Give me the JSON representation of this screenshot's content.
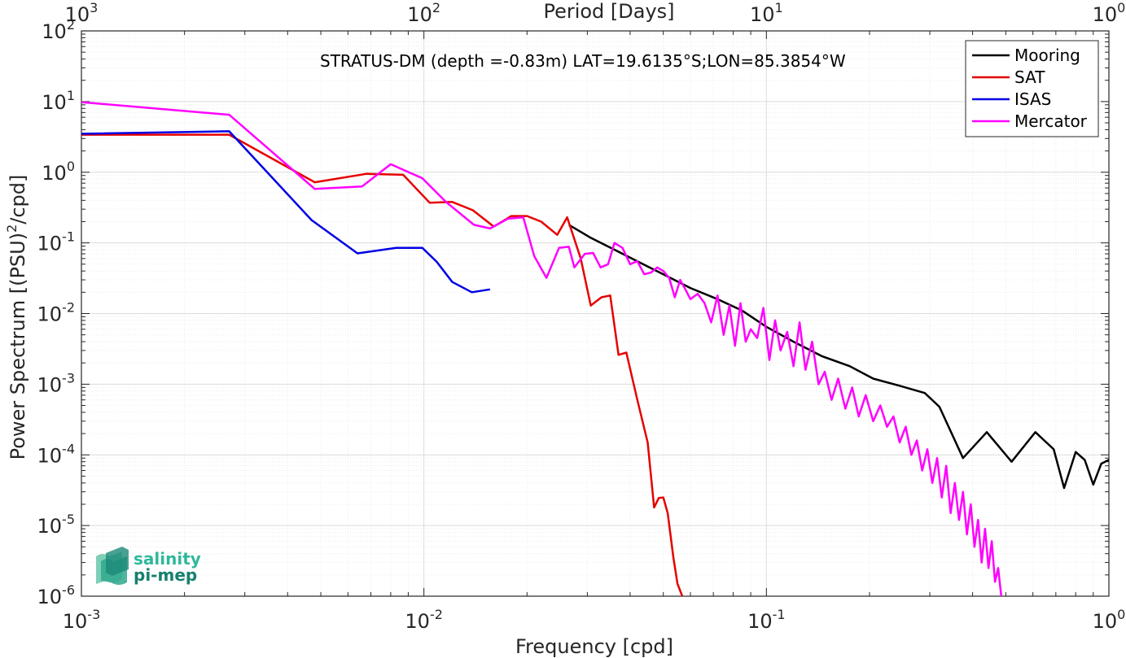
{
  "chart_data": {
    "type": "line",
    "x_scale": "log",
    "y_scale": "log",
    "xlabel": "Frequency [cpd]",
    "ylabel": "Power Spectrum [(PSU)^2/cpd]",
    "top_axis_label": "Period [Days]",
    "annotation": "STRATUS-DM (depth =-0.83m) LAT=19.6135°S;LON=85.3854°W",
    "xlim": [
      0.001,
      1
    ],
    "ylim": [
      1e-06,
      100
    ],
    "grid": true,
    "legend_position": "top-right",
    "x_ticks": [
      {
        "base": "10",
        "exp": "-3"
      },
      {
        "base": "10",
        "exp": "-2"
      },
      {
        "base": "10",
        "exp": "-1"
      },
      {
        "base": "10",
        "exp": "0"
      }
    ],
    "x_ticks_top": [
      {
        "base": "10",
        "exp": "3"
      },
      {
        "base": "10",
        "exp": "2"
      },
      {
        "base": "10",
        "exp": "1"
      },
      {
        "base": "10",
        "exp": "0"
      }
    ],
    "y_ticks": [
      {
        "base": "10",
        "exp": "-6"
      },
      {
        "base": "10",
        "exp": "-5"
      },
      {
        "base": "10",
        "exp": "-4"
      },
      {
        "base": "10",
        "exp": "-3"
      },
      {
        "base": "10",
        "exp": "-2"
      },
      {
        "base": "10",
        "exp": "-1"
      },
      {
        "base": "10",
        "exp": "0"
      },
      {
        "base": "10",
        "exp": "1"
      },
      {
        "base": "10",
        "exp": "2"
      }
    ],
    "series": [
      {
        "name": "Mooring",
        "color": "#000000",
        "x": [
          0.0265,
          0.0305,
          0.036,
          0.042,
          0.05,
          0.06,
          0.072,
          0.085,
          0.1,
          0.12,
          0.145,
          0.175,
          0.205,
          0.245,
          0.29,
          0.32,
          0.375,
          0.44,
          0.52,
          0.61,
          0.69,
          0.74,
          0.8,
          0.85,
          0.9,
          0.95,
          1.0
        ],
        "y": [
          0.18,
          0.12,
          0.08,
          0.055,
          0.036,
          0.023,
          0.016,
          0.011,
          0.0065,
          0.004,
          0.0025,
          0.0018,
          0.0012,
          0.00095,
          0.00075,
          0.00048,
          9e-05,
          0.00021,
          8e-05,
          0.00021,
          0.00012,
          3.4e-05,
          0.00011,
          8.5e-05,
          3.8e-05,
          7.5e-05,
          8.5e-05
        ]
      },
      {
        "name": "SAT",
        "color": "#e60000",
        "x": [
          0.001,
          0.0027,
          0.0048,
          0.0068,
          0.0087,
          0.0104,
          0.0121,
          0.0139,
          0.016,
          0.018,
          0.02,
          0.022,
          0.0245,
          0.0262,
          0.0287,
          0.0307,
          0.033,
          0.035,
          0.037,
          0.039,
          0.042,
          0.045,
          0.047,
          0.0485,
          0.05,
          0.0515,
          0.0535,
          0.055,
          0.0568
        ],
        "y": [
          3.4,
          3.4,
          0.72,
          0.95,
          0.92,
          0.37,
          0.38,
          0.29,
          0.17,
          0.24,
          0.24,
          0.2,
          0.13,
          0.23,
          0.06,
          0.013,
          0.017,
          0.018,
          0.0026,
          0.0028,
          0.0006,
          0.00015,
          1.8e-05,
          2.45e-05,
          2.5e-05,
          1.5e-05,
          3.5e-06,
          1.5e-06,
          1e-06
        ]
      },
      {
        "name": "ISAS",
        "color": "#0000e6",
        "x": [
          0.001,
          0.0027,
          0.0047,
          0.0064,
          0.0083,
          0.0099,
          0.0109,
          0.0121,
          0.0138,
          0.0156
        ],
        "y": [
          3.5,
          3.8,
          0.21,
          0.071,
          0.085,
          0.085,
          0.054,
          0.028,
          0.02,
          0.022
        ]
      },
      {
        "name": "Mercator",
        "color": "#ff00ff",
        "x": [
          0.001,
          0.0027,
          0.0048,
          0.0066,
          0.008,
          0.0099,
          0.0116,
          0.014,
          0.0156,
          0.0176,
          0.0195,
          0.021,
          0.0228,
          0.0248,
          0.0265,
          0.0275,
          0.0295,
          0.0312,
          0.0328,
          0.0345,
          0.036,
          0.038,
          0.04,
          0.042,
          0.044,
          0.046,
          0.048,
          0.05,
          0.052,
          0.054,
          0.056,
          0.058,
          0.06,
          0.063,
          0.066,
          0.069,
          0.072,
          0.075,
          0.078,
          0.081,
          0.084,
          0.087,
          0.09,
          0.094,
          0.098,
          0.102,
          0.106,
          0.11,
          0.115,
          0.12,
          0.125,
          0.13,
          0.136,
          0.142,
          0.148,
          0.155,
          0.162,
          0.17,
          0.178,
          0.186,
          0.195,
          0.205,
          0.215,
          0.225,
          0.235,
          0.245,
          0.255,
          0.265,
          0.275,
          0.285,
          0.295,
          0.305,
          0.315,
          0.325,
          0.335,
          0.345,
          0.355,
          0.365,
          0.375,
          0.385,
          0.395,
          0.405,
          0.415,
          0.425,
          0.435,
          0.445,
          0.455,
          0.465,
          0.475,
          0.485
        ],
        "y": [
          9.8,
          6.5,
          0.58,
          0.63,
          1.3,
          0.82,
          0.38,
          0.18,
          0.16,
          0.22,
          0.23,
          0.065,
          0.032,
          0.085,
          0.088,
          0.045,
          0.07,
          0.072,
          0.045,
          0.05,
          0.1,
          0.085,
          0.05,
          0.055,
          0.036,
          0.038,
          0.045,
          0.04,
          0.032,
          0.017,
          0.03,
          0.022,
          0.016,
          0.019,
          0.014,
          0.0075,
          0.018,
          0.005,
          0.013,
          0.0035,
          0.014,
          0.004,
          0.006,
          0.0045,
          0.012,
          0.0022,
          0.008,
          0.003,
          0.0055,
          0.0018,
          0.0075,
          0.0016,
          0.004,
          0.001,
          0.0015,
          0.0006,
          0.0012,
          0.00045,
          0.0009,
          0.00035,
          0.0007,
          0.0003,
          0.0005,
          0.00025,
          0.00035,
          0.00015,
          0.00025,
          0.0001,
          0.00016,
          6e-05,
          0.00012,
          4e-05,
          9e-05,
          2.5e-05,
          7e-05,
          1.5e-05,
          4e-05,
          1.2e-05,
          3e-05,
          7.5e-06,
          2e-05,
          5e-06,
          1.2e-05,
          3e-06,
          9e-06,
          2.5e-06,
          6e-06,
          1.6e-06,
          2.5e-06,
          1e-06
        ]
      }
    ]
  },
  "logo": {
    "line1": "salinity",
    "line2": "pi-mep"
  }
}
